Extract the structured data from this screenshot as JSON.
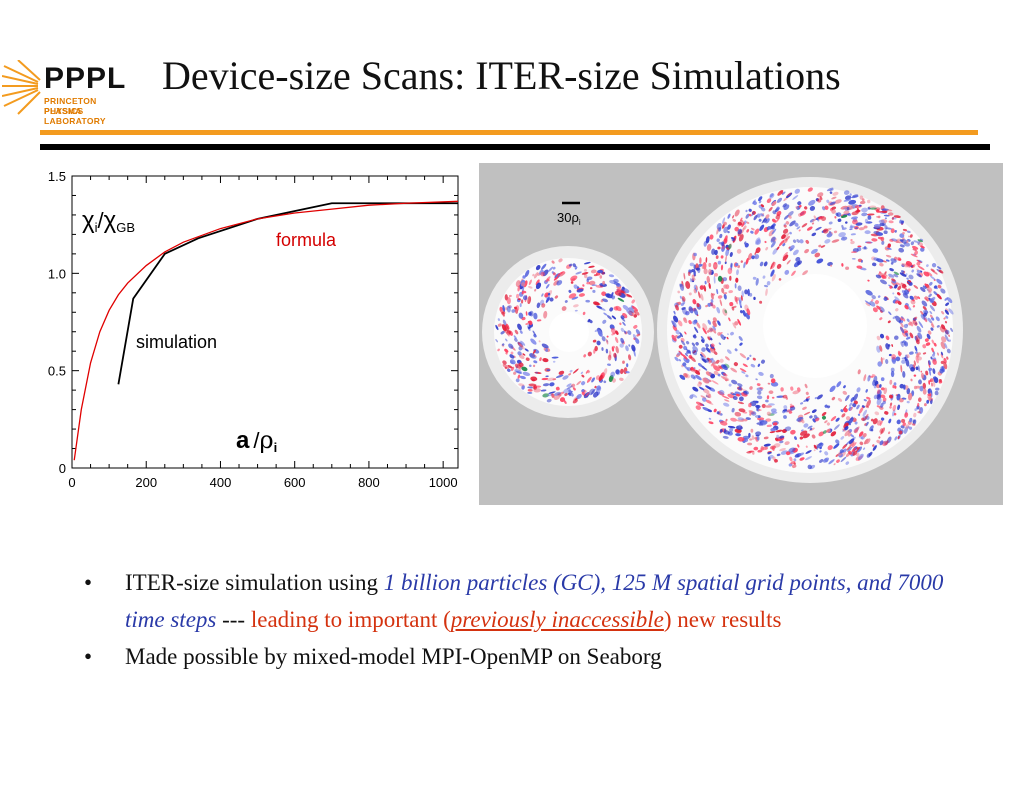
{
  "logo": {
    "name": "PPPL",
    "sub_line1": "PRINCETON PLASMA",
    "sub_line2": "PHYSICS LABORATORY"
  },
  "slide": {
    "title": "Device-size Scans: ITER-size Simulations"
  },
  "chart_data": {
    "type": "line",
    "xlim": [
      0,
      1040
    ],
    "ylim": [
      0,
      1.5
    ],
    "x_ticks": [
      "0",
      "200",
      "400",
      "600",
      "800",
      "1000"
    ],
    "y_ticks": [
      "0",
      "0.5",
      "1.0",
      "1.5"
    ],
    "ylabel": "χi/χGB",
    "xlabel": "a/ρi",
    "series": [
      {
        "name": "simulation",
        "color": "#000000",
        "x": [
          125,
          165,
          250,
          340,
          500,
          700,
          1040
        ],
        "y": [
          0.43,
          0.87,
          1.1,
          1.18,
          1.28,
          1.36,
          1.36
        ]
      },
      {
        "name": "formula",
        "color": "#e00000",
        "x": [
          6,
          25,
          50,
          75,
          100,
          125,
          150,
          200,
          250,
          300,
          400,
          500,
          600,
          700,
          800,
          900,
          1040
        ],
        "y": [
          0.04,
          0.3,
          0.54,
          0.7,
          0.81,
          0.89,
          0.95,
          1.04,
          1.11,
          1.16,
          1.23,
          1.28,
          1.31,
          1.33,
          1.35,
          1.36,
          1.37
        ]
      }
    ],
    "ylabel_parts": {
      "main1": "χ",
      "sub1": "i",
      "slash": "/",
      "main2": "χ",
      "sub2": "GB"
    },
    "xlabel_parts": {
      "a": "a",
      "slash": "/",
      "rho": "ρ",
      "sub": "i"
    }
  },
  "sim_image": {
    "scale_label": "30ρ",
    "scale_sub": "i",
    "background": "#c0c0c0"
  },
  "bullets": [
    {
      "marker": "•",
      "t1": "ITER-size simulation using ",
      "t2": "1 billion particles (GC), 125 M spatial grid points, and 7000 time steps",
      "t3": " --- ",
      "t4": "leading to important (",
      "t5": "previously inaccessible",
      "t6": ") new results"
    },
    {
      "marker": "•",
      "t1": "Made possible by mixed-model MPI-OpenMP on Seaborg"
    }
  ]
}
